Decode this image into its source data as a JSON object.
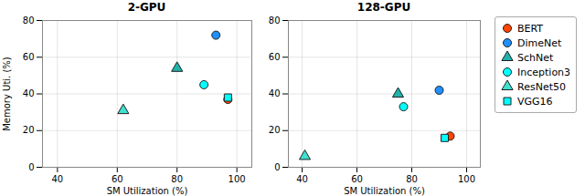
{
  "chart_data": [
    {
      "type": "scatter",
      "title": "2-GPU",
      "xlabel": "SM Utilization (%)",
      "ylabel": "Memory Uti. (%)",
      "xlim": [
        35,
        105
      ],
      "ylim": [
        0,
        80
      ],
      "xticks": [
        40,
        60,
        80,
        100
      ],
      "yticks": [
        0,
        20,
        40,
        60,
        80
      ],
      "grid": true,
      "series": [
        {
          "name": "BERT",
          "color": "#FF4500",
          "marker": "circle",
          "x": [
            97
          ],
          "values": [
            37
          ]
        },
        {
          "name": "DimeNet",
          "color": "#1E90FF",
          "marker": "circle",
          "x": [
            93
          ],
          "values": [
            72
          ]
        },
        {
          "name": "SchNet",
          "color": "#20B2AA",
          "marker": "triangle",
          "x": [
            80
          ],
          "values": [
            54
          ]
        },
        {
          "name": "Inception3",
          "color": "#00FFFF",
          "marker": "circle",
          "x": [
            89
          ],
          "values": [
            45
          ]
        },
        {
          "name": "ResNet50",
          "color": "#40E0D0",
          "marker": "triangle",
          "x": [
            62
          ],
          "values": [
            31
          ]
        },
        {
          "name": "VGG16",
          "color": "#00FFFF",
          "marker": "square",
          "x": [
            97
          ],
          "values": [
            38
          ]
        }
      ]
    },
    {
      "type": "scatter",
      "title": "128-GPU",
      "xlabel": "SM Utilization (%)",
      "xlim": [
        35,
        105
      ],
      "ylim": [
        0,
        80
      ],
      "xticks": [
        40,
        60,
        80,
        100
      ],
      "yticks": [
        0,
        20,
        40,
        60,
        80
      ],
      "grid": true,
      "legend": "right",
      "series": [
        {
          "name": "BERT",
          "color": "#FF4500",
          "marker": "circle",
          "x": [
            94
          ],
          "values": [
            17
          ]
        },
        {
          "name": "DimeNet",
          "color": "#1E90FF",
          "marker": "circle",
          "x": [
            90
          ],
          "values": [
            42
          ]
        },
        {
          "name": "SchNet",
          "color": "#20B2AA",
          "marker": "triangle",
          "x": [
            75
          ],
          "values": [
            40
          ]
        },
        {
          "name": "Inception3",
          "color": "#00FFFF",
          "marker": "circle",
          "x": [
            77
          ],
          "values": [
            33
          ]
        },
        {
          "name": "ResNet50",
          "color": "#40E0D0",
          "marker": "triangle",
          "x": [
            41
          ],
          "values": [
            6
          ]
        },
        {
          "name": "VGG16",
          "color": "#00FFFF",
          "marker": "square",
          "x": [
            92
          ],
          "values": [
            16
          ]
        }
      ]
    }
  ]
}
